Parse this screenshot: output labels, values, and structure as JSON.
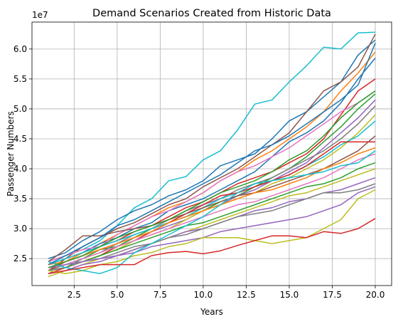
{
  "chart_data": {
    "type": "line",
    "title": "Demand Scenarios Created from Historic Data",
    "xlabel": "Years",
    "ylabel": "Passenger Numbers",
    "y_multiplier_label": "1e7",
    "xlim": [
      0.05,
      20.95
    ],
    "ylim": [
      2.05,
      6.45
    ],
    "x_ticks": [
      2.5,
      5.0,
      7.5,
      10.0,
      12.5,
      15.0,
      17.5,
      20.0
    ],
    "x_tick_labels": [
      "2.5",
      "5.0",
      "7.5",
      "10.0",
      "12.5",
      "15.0",
      "17.5",
      "20.0"
    ],
    "y_ticks": [
      2.5,
      3.0,
      3.5,
      4.0,
      4.5,
      5.0,
      5.5,
      6.0
    ],
    "y_tick_labels": [
      "2.5",
      "3.0",
      "3.5",
      "4.0",
      "4.5",
      "5.0",
      "5.5",
      "6.0"
    ],
    "grid": true,
    "legend": "none",
    "x": [
      1,
      2,
      3,
      4,
      5,
      6,
      7,
      8,
      9,
      10,
      11,
      12,
      13,
      14,
      15,
      16,
      17,
      18,
      19,
      20
    ],
    "series": [
      {
        "color": "#17becf",
        "values": [
          2.45,
          2.55,
          2.65,
          2.8,
          3.05,
          3.35,
          3.5,
          3.8,
          3.87,
          4.15,
          4.3,
          4.65,
          5.08,
          5.15,
          5.45,
          5.72,
          6.03,
          6.0,
          6.27,
          6.28
        ]
      },
      {
        "color": "#1f77b4",
        "values": [
          2.5,
          2.6,
          2.8,
          2.95,
          3.15,
          3.3,
          3.4,
          3.55,
          3.65,
          3.8,
          4.05,
          4.15,
          4.25,
          4.5,
          4.8,
          4.95,
          5.2,
          5.45,
          5.9,
          6.15
        ]
      },
      {
        "color": "#8c564b",
        "values": [
          2.3,
          2.5,
          2.7,
          2.85,
          3.0,
          3.1,
          3.25,
          3.4,
          3.5,
          3.7,
          3.85,
          4.0,
          4.2,
          4.4,
          4.6,
          4.95,
          5.3,
          5.45,
          5.7,
          6.25
        ]
      },
      {
        "color": "#ff7f0e",
        "values": [
          2.35,
          2.45,
          2.6,
          2.75,
          2.9,
          3.05,
          3.2,
          3.35,
          3.45,
          3.6,
          3.8,
          3.95,
          4.15,
          4.3,
          4.5,
          4.7,
          4.95,
          5.3,
          5.6,
          5.95
        ]
      },
      {
        "color": "#1f77b4",
        "values": [
          2.4,
          2.5,
          2.6,
          2.75,
          2.85,
          3.0,
          3.1,
          3.3,
          3.4,
          3.5,
          3.65,
          3.8,
          3.95,
          4.2,
          4.45,
          4.6,
          4.8,
          5.1,
          5.5,
          5.85
        ]
      },
      {
        "color": "#d62728",
        "values": [
          2.3,
          2.45,
          2.55,
          2.7,
          2.8,
          2.95,
          3.05,
          3.2,
          3.35,
          3.45,
          3.6,
          3.75,
          3.85,
          3.95,
          4.1,
          4.25,
          4.5,
          4.9,
          5.3,
          5.5
        ]
      },
      {
        "color": "#e377c2",
        "values": [
          2.45,
          2.55,
          2.65,
          2.7,
          2.9,
          3.05,
          3.2,
          3.3,
          3.45,
          3.6,
          3.8,
          3.95,
          4.05,
          4.2,
          4.35,
          4.55,
          4.75,
          4.95,
          5.1,
          5.3
        ]
      },
      {
        "color": "#2ca02c",
        "values": [
          2.3,
          2.35,
          2.5,
          2.65,
          2.7,
          2.85,
          3.0,
          3.1,
          3.2,
          3.3,
          3.45,
          3.55,
          3.7,
          3.85,
          4.0,
          4.2,
          4.45,
          4.7,
          5.0,
          5.25
        ]
      },
      {
        "color": "#9467bd",
        "values": [
          2.35,
          2.45,
          2.55,
          2.65,
          2.75,
          2.85,
          2.95,
          3.05,
          3.15,
          3.3,
          3.4,
          3.55,
          3.65,
          3.8,
          3.95,
          4.1,
          4.35,
          4.6,
          4.85,
          5.15
        ]
      },
      {
        "color": "#7f7f7f",
        "values": [
          2.3,
          2.4,
          2.5,
          2.6,
          2.75,
          2.9,
          3.0,
          3.15,
          3.3,
          3.4,
          3.5,
          3.65,
          3.75,
          3.85,
          4.0,
          4.15,
          4.3,
          4.5,
          4.75,
          5.05
        ]
      },
      {
        "color": "#bcbd22",
        "values": [
          2.25,
          2.35,
          2.45,
          2.55,
          2.65,
          2.8,
          2.9,
          3.0,
          3.15,
          3.3,
          3.4,
          3.5,
          3.6,
          3.75,
          3.85,
          4.0,
          4.15,
          4.35,
          4.6,
          4.9
        ]
      },
      {
        "color": "#17becf",
        "values": [
          2.4,
          2.5,
          2.6,
          2.7,
          2.8,
          2.9,
          3.0,
          3.1,
          3.2,
          3.35,
          3.5,
          3.6,
          3.7,
          3.8,
          3.9,
          4.05,
          4.2,
          4.4,
          4.55,
          4.8
        ]
      },
      {
        "color": "#d62728",
        "values": [
          2.25,
          2.35,
          2.45,
          2.55,
          2.7,
          2.8,
          2.95,
          3.1,
          3.25,
          3.4,
          3.55,
          3.6,
          3.7,
          3.8,
          3.9,
          4.05,
          4.25,
          4.45,
          4.45,
          4.45
        ]
      },
      {
        "color": "#8c564b",
        "values": [
          2.45,
          2.65,
          2.88,
          2.88,
          2.95,
          3.0,
          3.05,
          3.15,
          3.25,
          3.35,
          3.45,
          3.55,
          3.6,
          3.7,
          3.8,
          3.9,
          4.0,
          4.15,
          4.3,
          4.55
        ]
      },
      {
        "color": "#ff7f0e",
        "values": [
          2.4,
          2.45,
          2.55,
          2.65,
          2.75,
          2.85,
          2.95,
          3.1,
          3.2,
          3.3,
          3.4,
          3.5,
          3.6,
          3.65,
          3.75,
          3.85,
          4.0,
          4.1,
          4.25,
          4.35
        ]
      },
      {
        "color": "#e377c2",
        "values": [
          2.35,
          2.4,
          2.5,
          2.6,
          2.7,
          2.8,
          2.9,
          3.0,
          3.1,
          3.2,
          3.3,
          3.4,
          3.45,
          3.55,
          3.65,
          3.75,
          3.85,
          4.0,
          4.15,
          4.25
        ]
      },
      {
        "color": "#2ca02c",
        "values": [
          2.3,
          2.35,
          2.45,
          2.55,
          2.65,
          2.75,
          2.85,
          2.95,
          3.05,
          3.1,
          3.2,
          3.3,
          3.4,
          3.5,
          3.6,
          3.7,
          3.75,
          3.85,
          4.0,
          4.1
        ]
      },
      {
        "color": "#bcbd22",
        "values": [
          2.2,
          2.3,
          2.4,
          2.5,
          2.55,
          2.65,
          2.75,
          2.85,
          2.95,
          3.05,
          3.15,
          3.25,
          3.35,
          3.45,
          3.55,
          3.6,
          3.7,
          3.8,
          3.9,
          4.0
        ]
      },
      {
        "color": "#9467bd",
        "values": [
          2.25,
          2.3,
          2.4,
          2.45,
          2.55,
          2.65,
          2.75,
          2.85,
          2.95,
          3.0,
          3.1,
          3.2,
          3.3,
          3.35,
          3.45,
          3.5,
          3.6,
          3.65,
          3.75,
          3.85
        ]
      },
      {
        "color": "#7f7f7f",
        "values": [
          2.3,
          2.35,
          2.45,
          2.5,
          2.6,
          2.7,
          2.75,
          2.85,
          2.9,
          3.0,
          3.1,
          3.2,
          3.25,
          3.3,
          3.4,
          3.5,
          3.6,
          3.6,
          3.65,
          3.75
        ]
      },
      {
        "color": "#9467bd",
        "values": [
          2.35,
          2.4,
          2.45,
          2.5,
          2.55,
          2.6,
          2.7,
          2.75,
          2.8,
          2.85,
          2.95,
          3.0,
          3.05,
          3.1,
          3.15,
          3.2,
          3.3,
          3.4,
          3.6,
          3.7
        ]
      },
      {
        "color": "#bcbd22",
        "values": [
          2.3,
          2.25,
          2.3,
          2.4,
          2.45,
          2.55,
          2.6,
          2.7,
          2.75,
          2.85,
          2.85,
          2.85,
          2.8,
          2.75,
          2.8,
          2.85,
          3.0,
          3.15,
          3.5,
          3.65
        ]
      },
      {
        "color": "#17becf",
        "values": [
          2.45,
          2.35,
          2.3,
          2.25,
          2.35,
          2.6,
          2.75,
          2.9,
          3.05,
          3.2,
          3.4,
          3.6,
          3.75,
          3.8,
          3.85,
          3.9,
          3.95,
          4.05,
          4.1,
          4.3
        ]
      },
      {
        "color": "#d62728",
        "values": [
          2.25,
          2.3,
          2.35,
          2.4,
          2.4,
          2.4,
          2.55,
          2.6,
          2.62,
          2.58,
          2.63,
          2.72,
          2.8,
          2.88,
          2.88,
          2.85,
          2.95,
          2.92,
          3.0,
          3.17
        ]
      },
      {
        "color": "#1f77b4",
        "values": [
          2.4,
          2.55,
          2.7,
          2.85,
          3.05,
          3.15,
          3.3,
          3.45,
          3.6,
          3.75,
          3.9,
          4.1,
          4.3,
          4.4,
          4.55,
          4.75,
          4.95,
          5.15,
          5.4,
          6.1
        ]
      },
      {
        "color": "#2ca02c",
        "values": [
          2.35,
          2.45,
          2.55,
          2.7,
          2.85,
          2.95,
          3.05,
          3.15,
          3.3,
          3.45,
          3.6,
          3.7,
          3.8,
          3.95,
          4.15,
          4.3,
          4.55,
          4.85,
          5.1,
          5.3
        ]
      }
    ]
  }
}
